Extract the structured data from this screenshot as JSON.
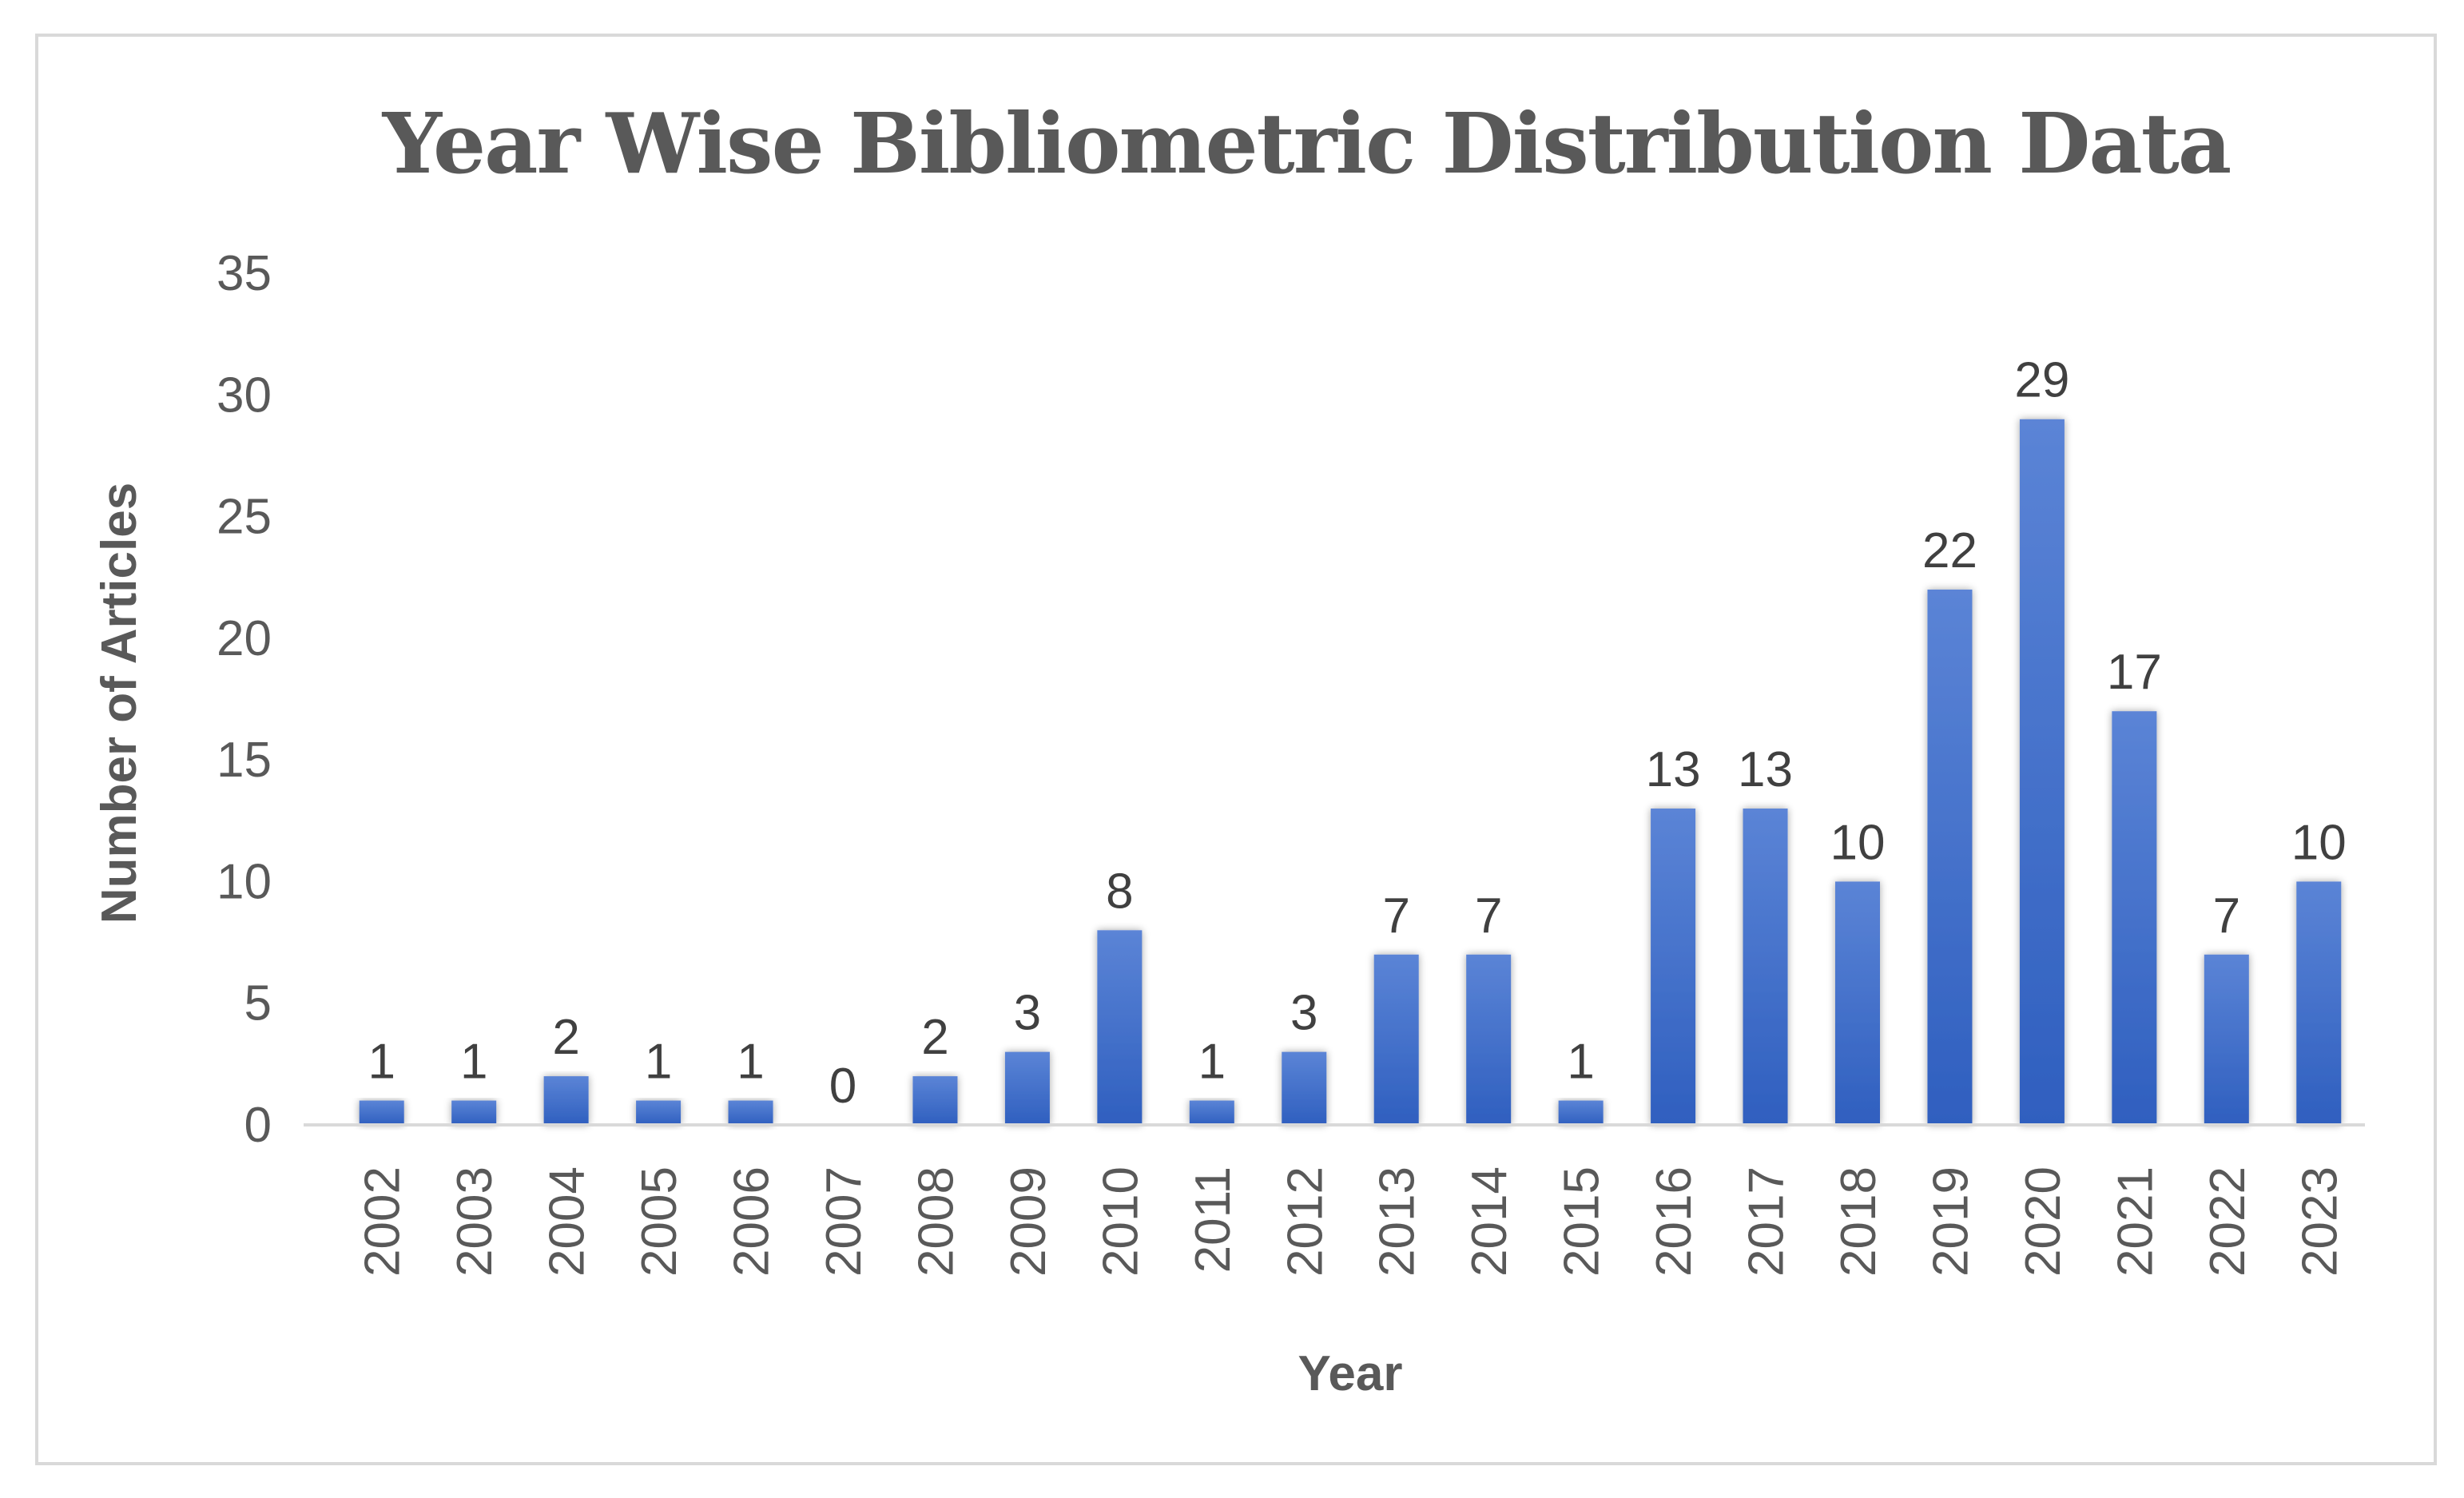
{
  "chart_data": {
    "type": "bar",
    "title": "Year Wise Bibliometric Distribution Data",
    "xlabel": "Year",
    "ylabel": "Number of Articles",
    "ylim": [
      0,
      35
    ],
    "yticks": [
      0,
      5,
      10,
      15,
      20,
      25,
      30,
      35
    ],
    "grid": false,
    "legend": "none",
    "categories": [
      "2002",
      "2003",
      "2004",
      "2005",
      "2006",
      "2007",
      "2008",
      "2009",
      "2010",
      "2011",
      "2012",
      "2013",
      "2014",
      "2015",
      "2016",
      "2017",
      "2018",
      "2019",
      "2020",
      "2021",
      "2022",
      "2023"
    ],
    "values": [
      1,
      1,
      2,
      1,
      1,
      0,
      2,
      3,
      8,
      1,
      3,
      7,
      7,
      1,
      13,
      13,
      10,
      22,
      29,
      17,
      7,
      10
    ],
    "colors": {
      "bar_top": "#5b84d6",
      "bar_bottom": "#2f5fbf",
      "axis": "#d9d9d9",
      "text": "#595959"
    }
  }
}
